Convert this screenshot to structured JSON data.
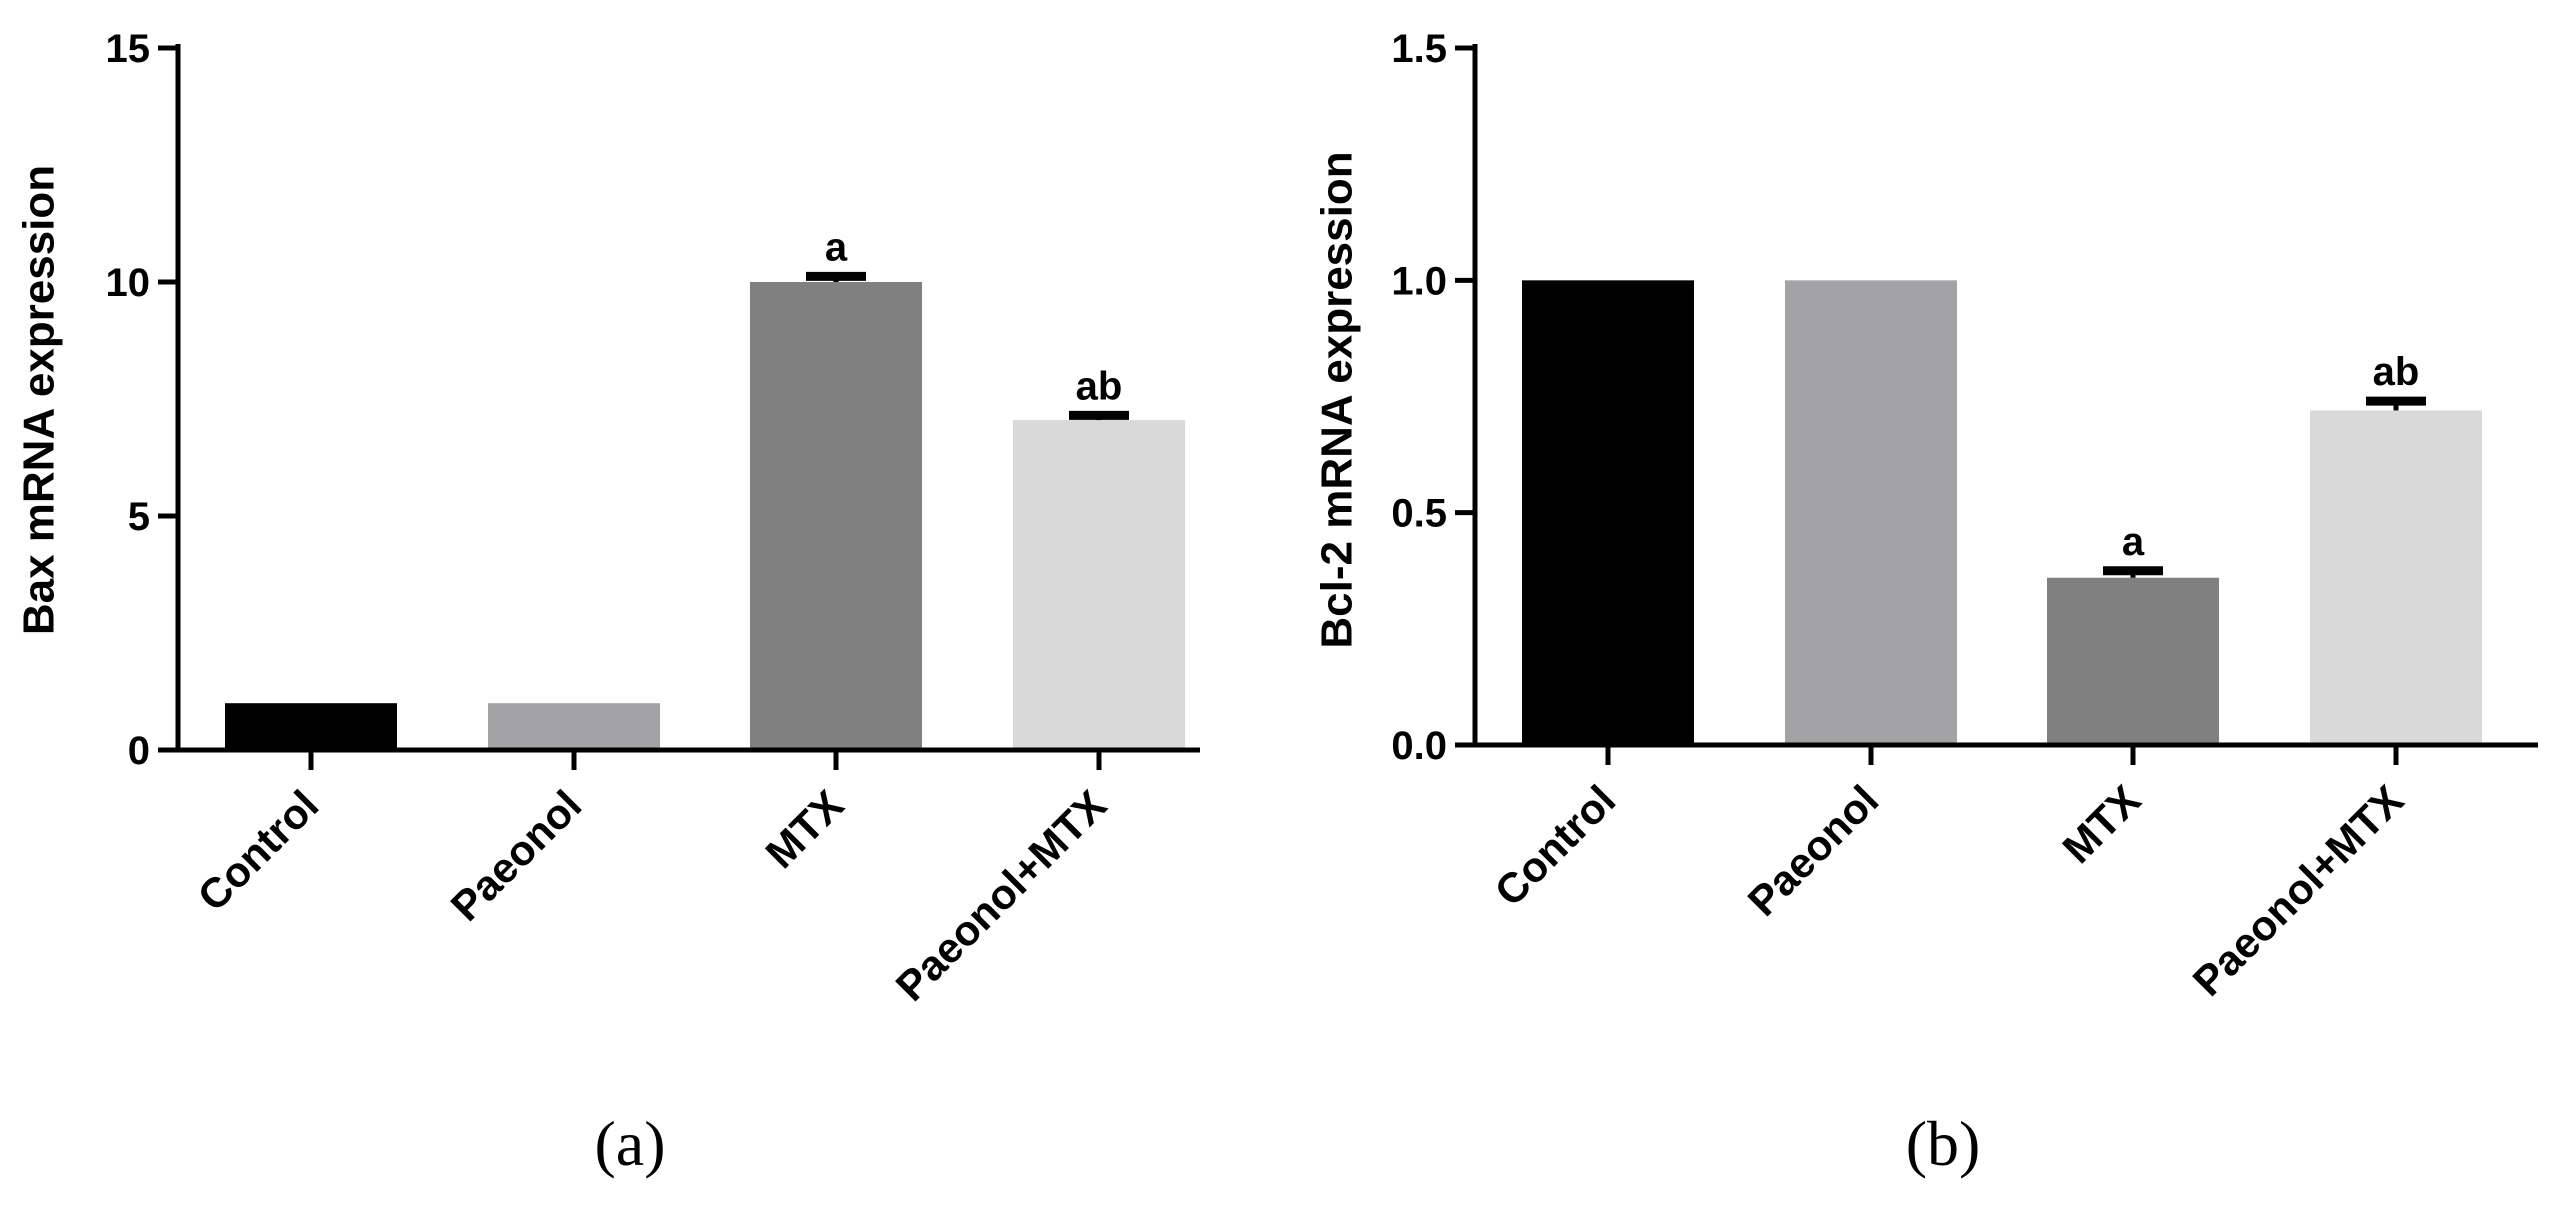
{
  "chart_data": [
    {
      "type": "bar",
      "panel_label": "(a)",
      "categories": [
        "Control",
        "Paeonol",
        "MTX",
        "Paeonol+MTX"
      ],
      "values": [
        1.0,
        1.0,
        10.0,
        7.05
      ],
      "errors": [
        0.0,
        0.0,
        0.12,
        0.1
      ],
      "significance": [
        "",
        "",
        "a",
        "ab"
      ],
      "colors": [
        "#000000",
        "#a3a3a6",
        "#808080",
        "#d9d9d9"
      ],
      "ylabel": "Bax mRNA expression",
      "xlabel": "",
      "ylim": [
        0,
        15
      ],
      "yticks": [
        0,
        5,
        10,
        15
      ],
      "ytick_labels": [
        "0",
        "5",
        "10",
        "15"
      ]
    },
    {
      "type": "bar",
      "panel_label": "(b)",
      "categories": [
        "Control",
        "Paeonol",
        "MTX",
        "Paeonol+MTX"
      ],
      "values": [
        1.0,
        1.0,
        0.36,
        0.72
      ],
      "errors": [
        0.0,
        0.0,
        0.015,
        0.02
      ],
      "significance": [
        "",
        "",
        "a",
        "ab"
      ],
      "colors": [
        "#000000",
        "#a3a3a6",
        "#808080",
        "#d9d9d9"
      ],
      "ylabel": "Bcl-2 mRNA expression",
      "xlabel": "",
      "ylim": [
        0,
        1.5
      ],
      "yticks": [
        0,
        0.5,
        1.0,
        1.5
      ],
      "ytick_labels": [
        "0.0",
        "0.5",
        "1.0",
        "1.5"
      ]
    }
  ]
}
